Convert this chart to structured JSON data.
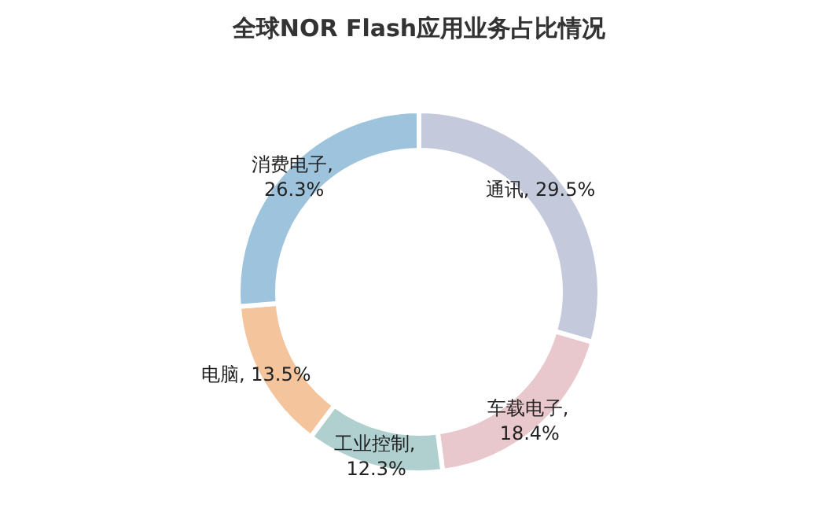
{
  "chart_data": {
    "type": "donut",
    "title": "全球NOR Flash应用业务占比情况",
    "categories": [
      "通讯",
      "车载电子",
      "工业控制",
      "电脑",
      "消费电子"
    ],
    "values": [
      29.5,
      18.4,
      12.3,
      13.5,
      26.3
    ],
    "colors": [
      "#c5c9dc",
      "#e8c8cc",
      "#b0d0d0",
      "#f4c49c",
      "#9ec3dc"
    ],
    "value_labels": [
      ", 29.5%",
      ",\n18.4%",
      ",\n12.3%",
      ", 13.5%",
      ",\n26.3%"
    ]
  }
}
